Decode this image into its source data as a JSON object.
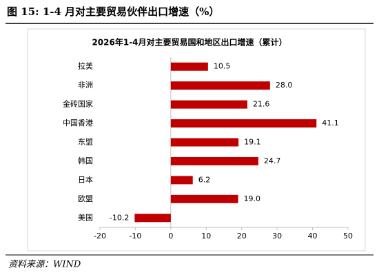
{
  "figure_title": "图 15: 1-4 月对主要贸易伙伴出口增速（%）",
  "source": "资料来源：WIND",
  "chart_data": {
    "type": "hbar",
    "title": "2026年1-4月对主要贸易国和地区出口增速（累计）",
    "categories": [
      "拉美",
      "非洲",
      "金砖国家",
      "中国香港",
      "东盟",
      "韩国",
      "日本",
      "欧盟",
      "美国"
    ],
    "values": [
      10.5,
      28.0,
      21.6,
      41.1,
      19.1,
      24.7,
      6.2,
      19.0,
      -10.2
    ],
    "value_labels": [
      "10.5",
      "28.0",
      "21.6",
      "41.1",
      "19.1",
      "24.7",
      "6.2",
      "19.0",
      "-10.2"
    ],
    "color": "#c00000",
    "negative_label_color": "#ff0000",
    "xlim": [
      -20,
      50
    ],
    "xticks": [
      -20,
      -10,
      0,
      10,
      20,
      30,
      40,
      50
    ]
  }
}
